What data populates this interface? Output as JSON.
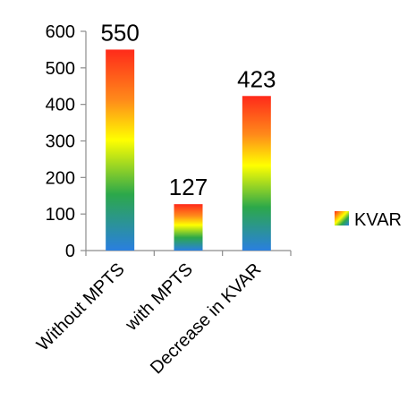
{
  "chart_data": {
    "type": "bar",
    "categories": [
      "Without MPTS",
      "with MPTS",
      "Decrease in KVAR"
    ],
    "series": [
      {
        "name": "KVAR",
        "values": [
          550,
          127,
          423
        ]
      }
    ],
    "data_labels": [
      "550",
      "127",
      "423"
    ],
    "y_ticks": [
      "0",
      "100",
      "200",
      "300",
      "400",
      "500",
      "600"
    ],
    "ylim": [
      0,
      600
    ],
    "grid": false,
    "legend_position": "right",
    "bar_fill": "vertical rainbow gradient: red top, yellow middle, blue bottom",
    "colors": {
      "red": "#ff2a1a",
      "orange": "#ff8a1a",
      "yellow": "#ffff00",
      "green": "#2ca84a",
      "blue": "#2a7fe0"
    }
  }
}
